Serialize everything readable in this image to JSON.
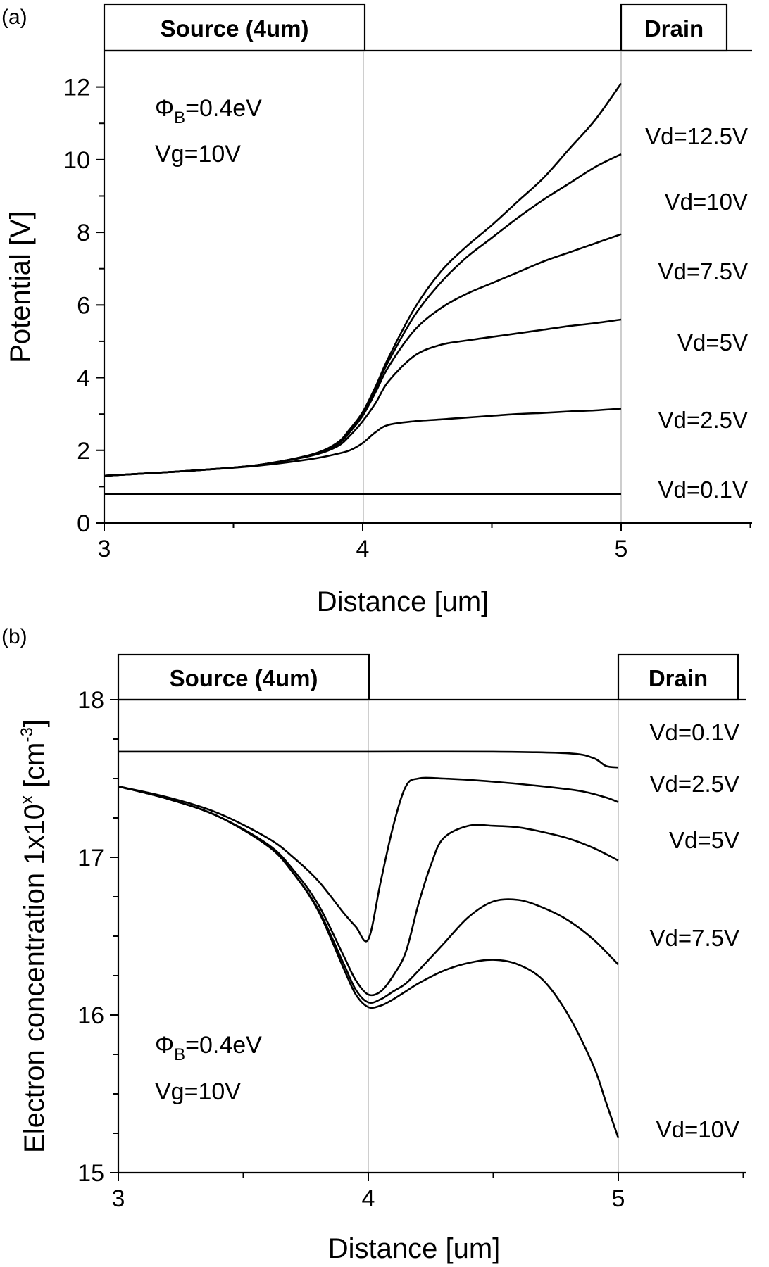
{
  "chart_data": [
    {
      "type": "line",
      "panel_label": "(a)",
      "xlabel": "Distance [um]",
      "ylabel": "Potential [V]",
      "xlim": [
        3,
        5.5
      ],
      "ylim": [
        0,
        13
      ],
      "xticks": [
        "3",
        "4",
        "5"
      ],
      "yticks": [
        "0",
        "2",
        "4",
        "6",
        "8",
        "10",
        "12"
      ],
      "regions": [
        {
          "label": "Source (4um)",
          "x_from": 3,
          "x_to": 4
        },
        {
          "label": "Drain",
          "x_from": 5
        }
      ],
      "annotations": {
        "phi_symbol": "Φ",
        "phi_subscript": "B",
        "phi_value": "=0.4eV",
        "vg": "Vg=10V"
      },
      "x": [
        3.0,
        3.2,
        3.4,
        3.6,
        3.8,
        3.9,
        3.95,
        4.0,
        4.05,
        4.1,
        4.2,
        4.3,
        4.4,
        4.5,
        4.6,
        4.7,
        4.8,
        4.9,
        5.0
      ],
      "series": [
        {
          "name": "Vd=0.1V",
          "values": [
            0.8,
            0.8,
            0.8,
            0.8,
            0.8,
            0.8,
            0.8,
            0.8,
            0.8,
            0.8,
            0.8,
            0.8,
            0.8,
            0.8,
            0.8,
            0.8,
            0.8,
            0.8,
            0.8
          ]
        },
        {
          "name": "Vd=2.5V",
          "values": [
            1.3,
            1.38,
            1.47,
            1.58,
            1.76,
            1.9,
            2.0,
            2.2,
            2.5,
            2.7,
            2.8,
            2.85,
            2.9,
            2.95,
            3.0,
            3.03,
            3.07,
            3.1,
            3.15
          ]
        },
        {
          "name": "Vd=5V",
          "values": [
            1.3,
            1.38,
            1.47,
            1.6,
            1.85,
            2.1,
            2.4,
            2.8,
            3.3,
            3.9,
            4.6,
            4.9,
            5.02,
            5.12,
            5.22,
            5.32,
            5.42,
            5.5,
            5.6
          ]
        },
        {
          "name": "Vd=7.5V",
          "values": [
            1.3,
            1.38,
            1.47,
            1.6,
            1.87,
            2.15,
            2.5,
            2.95,
            3.6,
            4.3,
            5.3,
            5.9,
            6.3,
            6.6,
            6.9,
            7.2,
            7.45,
            7.7,
            7.95
          ]
        },
        {
          "name": "Vd=10V",
          "values": [
            1.3,
            1.38,
            1.47,
            1.6,
            1.88,
            2.18,
            2.55,
            3.0,
            3.7,
            4.45,
            5.7,
            6.6,
            7.3,
            7.85,
            8.4,
            8.9,
            9.35,
            9.8,
            10.15
          ]
        },
        {
          "name": "Vd=12.5V",
          "values": [
            1.3,
            1.38,
            1.47,
            1.6,
            1.88,
            2.2,
            2.58,
            3.05,
            3.75,
            4.55,
            5.9,
            6.9,
            7.6,
            8.2,
            8.85,
            9.5,
            10.3,
            11.1,
            12.1
          ]
        }
      ]
    },
    {
      "type": "line",
      "panel_label": "(b)",
      "xlabel": "Distance [um]",
      "ylabel_main": "Electron concentration 1x10",
      "ylabel_sup": "x",
      "ylabel_unit": " [cm",
      "ylabel_unit_sup": "-3",
      "ylabel_close": "]",
      "xlim": [
        3,
        5.5
      ],
      "ylim": [
        15,
        18
      ],
      "xticks": [
        "3",
        "4",
        "5"
      ],
      "yticks": [
        "15",
        "16",
        "17",
        "18"
      ],
      "regions": [
        {
          "label": "Source (4um)",
          "x_from": 3,
          "x_to": 4
        },
        {
          "label": "Drain",
          "x_from": 5
        }
      ],
      "annotations": {
        "phi_symbol": "Φ",
        "phi_subscript": "B",
        "phi_value": "=0.4eV",
        "vg": "Vg=10V"
      },
      "series": [
        {
          "name": "Vd=0.1V",
          "x": [
            3.0,
            3.5,
            4.0,
            4.5,
            4.8,
            4.9,
            4.95,
            5.0
          ],
          "values": [
            17.67,
            17.67,
            17.67,
            17.67,
            17.66,
            17.63,
            17.58,
            17.57
          ]
        },
        {
          "name": "Vd=2.5V",
          "x": [
            3.0,
            3.2,
            3.4,
            3.6,
            3.7,
            3.8,
            3.9,
            3.95,
            4.0,
            4.05,
            4.1,
            4.15,
            4.2,
            4.3,
            4.5,
            4.7,
            4.85,
            4.95,
            5.0
          ],
          "values": [
            17.45,
            17.38,
            17.28,
            17.12,
            17.0,
            16.85,
            16.65,
            16.56,
            16.48,
            16.85,
            17.2,
            17.45,
            17.5,
            17.5,
            17.48,
            17.45,
            17.42,
            17.38,
            17.35
          ]
        },
        {
          "name": "Vd=5V",
          "x": [
            3.0,
            3.2,
            3.4,
            3.6,
            3.7,
            3.8,
            3.9,
            3.95,
            4.0,
            4.05,
            4.1,
            4.15,
            4.2,
            4.25,
            4.3,
            4.4,
            4.5,
            4.6,
            4.7,
            4.8,
            4.9,
            5.0
          ],
          "values": [
            17.45,
            17.37,
            17.26,
            17.08,
            16.92,
            16.7,
            16.38,
            16.22,
            16.13,
            16.15,
            16.25,
            16.4,
            16.7,
            16.95,
            17.12,
            17.2,
            17.2,
            17.19,
            17.16,
            17.12,
            17.06,
            16.98
          ]
        },
        {
          "name": "Vd=7.5V",
          "x": [
            3.0,
            3.2,
            3.4,
            3.6,
            3.7,
            3.8,
            3.9,
            3.95,
            4.0,
            4.05,
            4.1,
            4.15,
            4.2,
            4.3,
            4.4,
            4.5,
            4.6,
            4.7,
            4.8,
            4.9,
            5.0
          ],
          "values": [
            17.45,
            17.37,
            17.26,
            17.07,
            16.9,
            16.67,
            16.33,
            16.16,
            16.08,
            16.1,
            16.15,
            16.2,
            16.28,
            16.45,
            16.62,
            16.72,
            16.73,
            16.68,
            16.6,
            16.48,
            16.32
          ]
        },
        {
          "name": "Vd=10V",
          "x": [
            3.0,
            3.2,
            3.4,
            3.6,
            3.7,
            3.8,
            3.9,
            3.95,
            4.0,
            4.05,
            4.1,
            4.15,
            4.2,
            4.3,
            4.4,
            4.5,
            4.6,
            4.7,
            4.8,
            4.9,
            4.95,
            5.0
          ],
          "values": [
            17.45,
            17.37,
            17.26,
            17.07,
            16.9,
            16.66,
            16.3,
            16.13,
            16.05,
            16.06,
            16.1,
            16.15,
            16.2,
            16.28,
            16.33,
            16.35,
            16.32,
            16.22,
            16.0,
            15.68,
            15.45,
            15.22
          ]
        }
      ]
    }
  ]
}
